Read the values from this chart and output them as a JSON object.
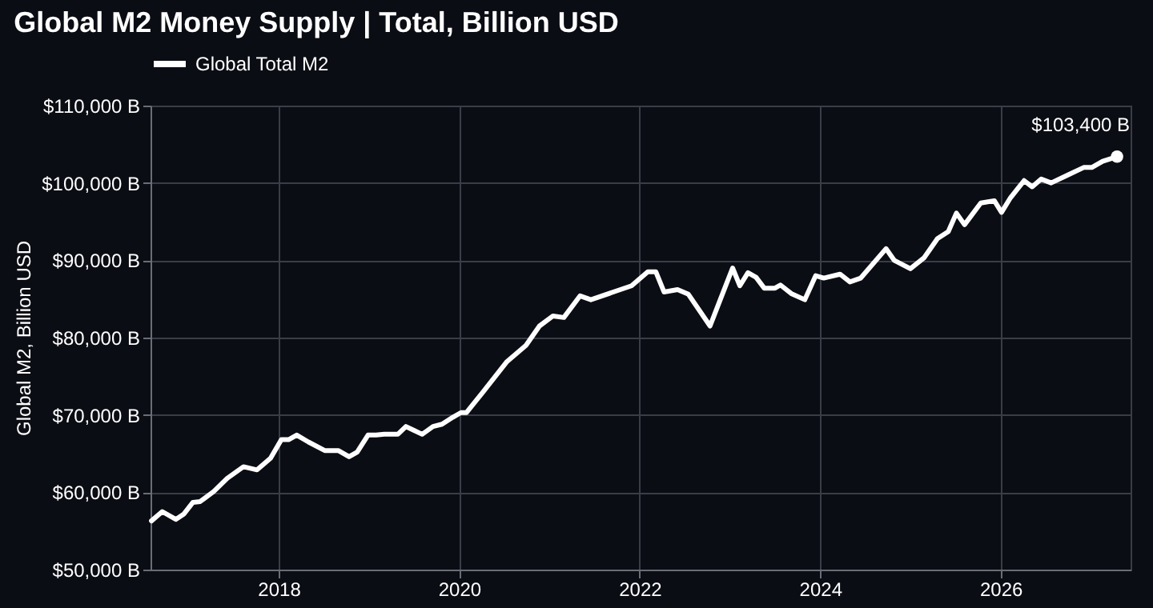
{
  "chart_data": {
    "type": "line",
    "title": "Global M2 Money Supply | Total, Billion USD",
    "ylabel": "Global M2, Billion USD",
    "x": [
      2016.59,
      2016.71,
      2016.86,
      2016.95,
      2017.05,
      2017.13,
      2017.28,
      2017.43,
      2017.61,
      2017.76,
      2017.91,
      2018.03,
      2018.11,
      2018.2,
      2018.33,
      2018.51,
      2018.66,
      2018.78,
      2018.87,
      2018.99,
      2019.08,
      2019.17,
      2019.32,
      2019.41,
      2019.5,
      2019.59,
      2019.71,
      2019.81,
      2019.93,
      2020.02,
      2020.08,
      2020.26,
      2020.53,
      2020.74,
      2020.89,
      2021.04,
      2021.16,
      2021.34,
      2021.46,
      2021.76,
      2021.91,
      2022.09,
      2022.18,
      2022.27,
      2022.42,
      2022.54,
      2022.78,
      2022.9,
      2023.03,
      2023.11,
      2023.2,
      2023.29,
      2023.38,
      2023.5,
      2023.56,
      2023.68,
      2023.83,
      2023.95,
      2024.04,
      2024.22,
      2024.33,
      2024.45,
      2024.73,
      2024.82,
      2025.0,
      2025.15,
      2025.3,
      2025.42,
      2025.51,
      2025.6,
      2025.78,
      2025.93,
      2026.01,
      2026.11,
      2026.26,
      2026.35,
      2026.45,
      2026.56,
      2026.74,
      2026.92,
      2027.01,
      2027.13,
      2027.29
    ],
    "series": [
      {
        "name": "Global Total M2",
        "color": "#ffffff",
        "values": [
          56300,
          57500,
          56500,
          57200,
          58700,
          58800,
          60100,
          61800,
          63300,
          62900,
          64400,
          66800,
          66800,
          67400,
          66500,
          65400,
          65400,
          64600,
          65200,
          67400,
          67400,
          67500,
          67500,
          68500,
          68000,
          67500,
          68500,
          68800,
          69700,
          70300,
          70300,
          72900,
          76900,
          79000,
          81500,
          82800,
          82600,
          85400,
          84900,
          86100,
          86700,
          88500,
          88500,
          85900,
          86200,
          85600,
          81500,
          85100,
          89000,
          86700,
          88400,
          87800,
          86400,
          86400,
          86800,
          85700,
          84900,
          88000,
          87700,
          88200,
          87200,
          87700,
          91500,
          90000,
          88900,
          90300,
          92800,
          93700,
          96100,
          94600,
          97400,
          97700,
          96200,
          98100,
          100300,
          99500,
          100500,
          100000,
          101000,
          102000,
          102000,
          102800,
          103400
        ]
      }
    ],
    "xlim": [
      2016.58,
      2027.44
    ],
    "xticks": [
      2018,
      2020,
      2022,
      2024,
      2026
    ],
    "ylim": [
      50000,
      110000
    ],
    "yticks": [
      {
        "value": 50000,
        "label": "$50,000 B"
      },
      {
        "value": 60000,
        "label": "$60,000 B"
      },
      {
        "value": 70000,
        "label": "$70,000 B"
      },
      {
        "value": 80000,
        "label": "$80,000 B"
      },
      {
        "value": 90000,
        "label": "$90,000 B"
      },
      {
        "value": 100000,
        "label": "$100,000 B"
      },
      {
        "value": 110000,
        "label": "$110,000 B"
      }
    ],
    "annotations": [
      {
        "text": "$103,400 B",
        "x": 2027.29,
        "y": 103400
      }
    ],
    "grid": true,
    "legend": "top",
    "marker": "none",
    "line_style": "solid"
  }
}
